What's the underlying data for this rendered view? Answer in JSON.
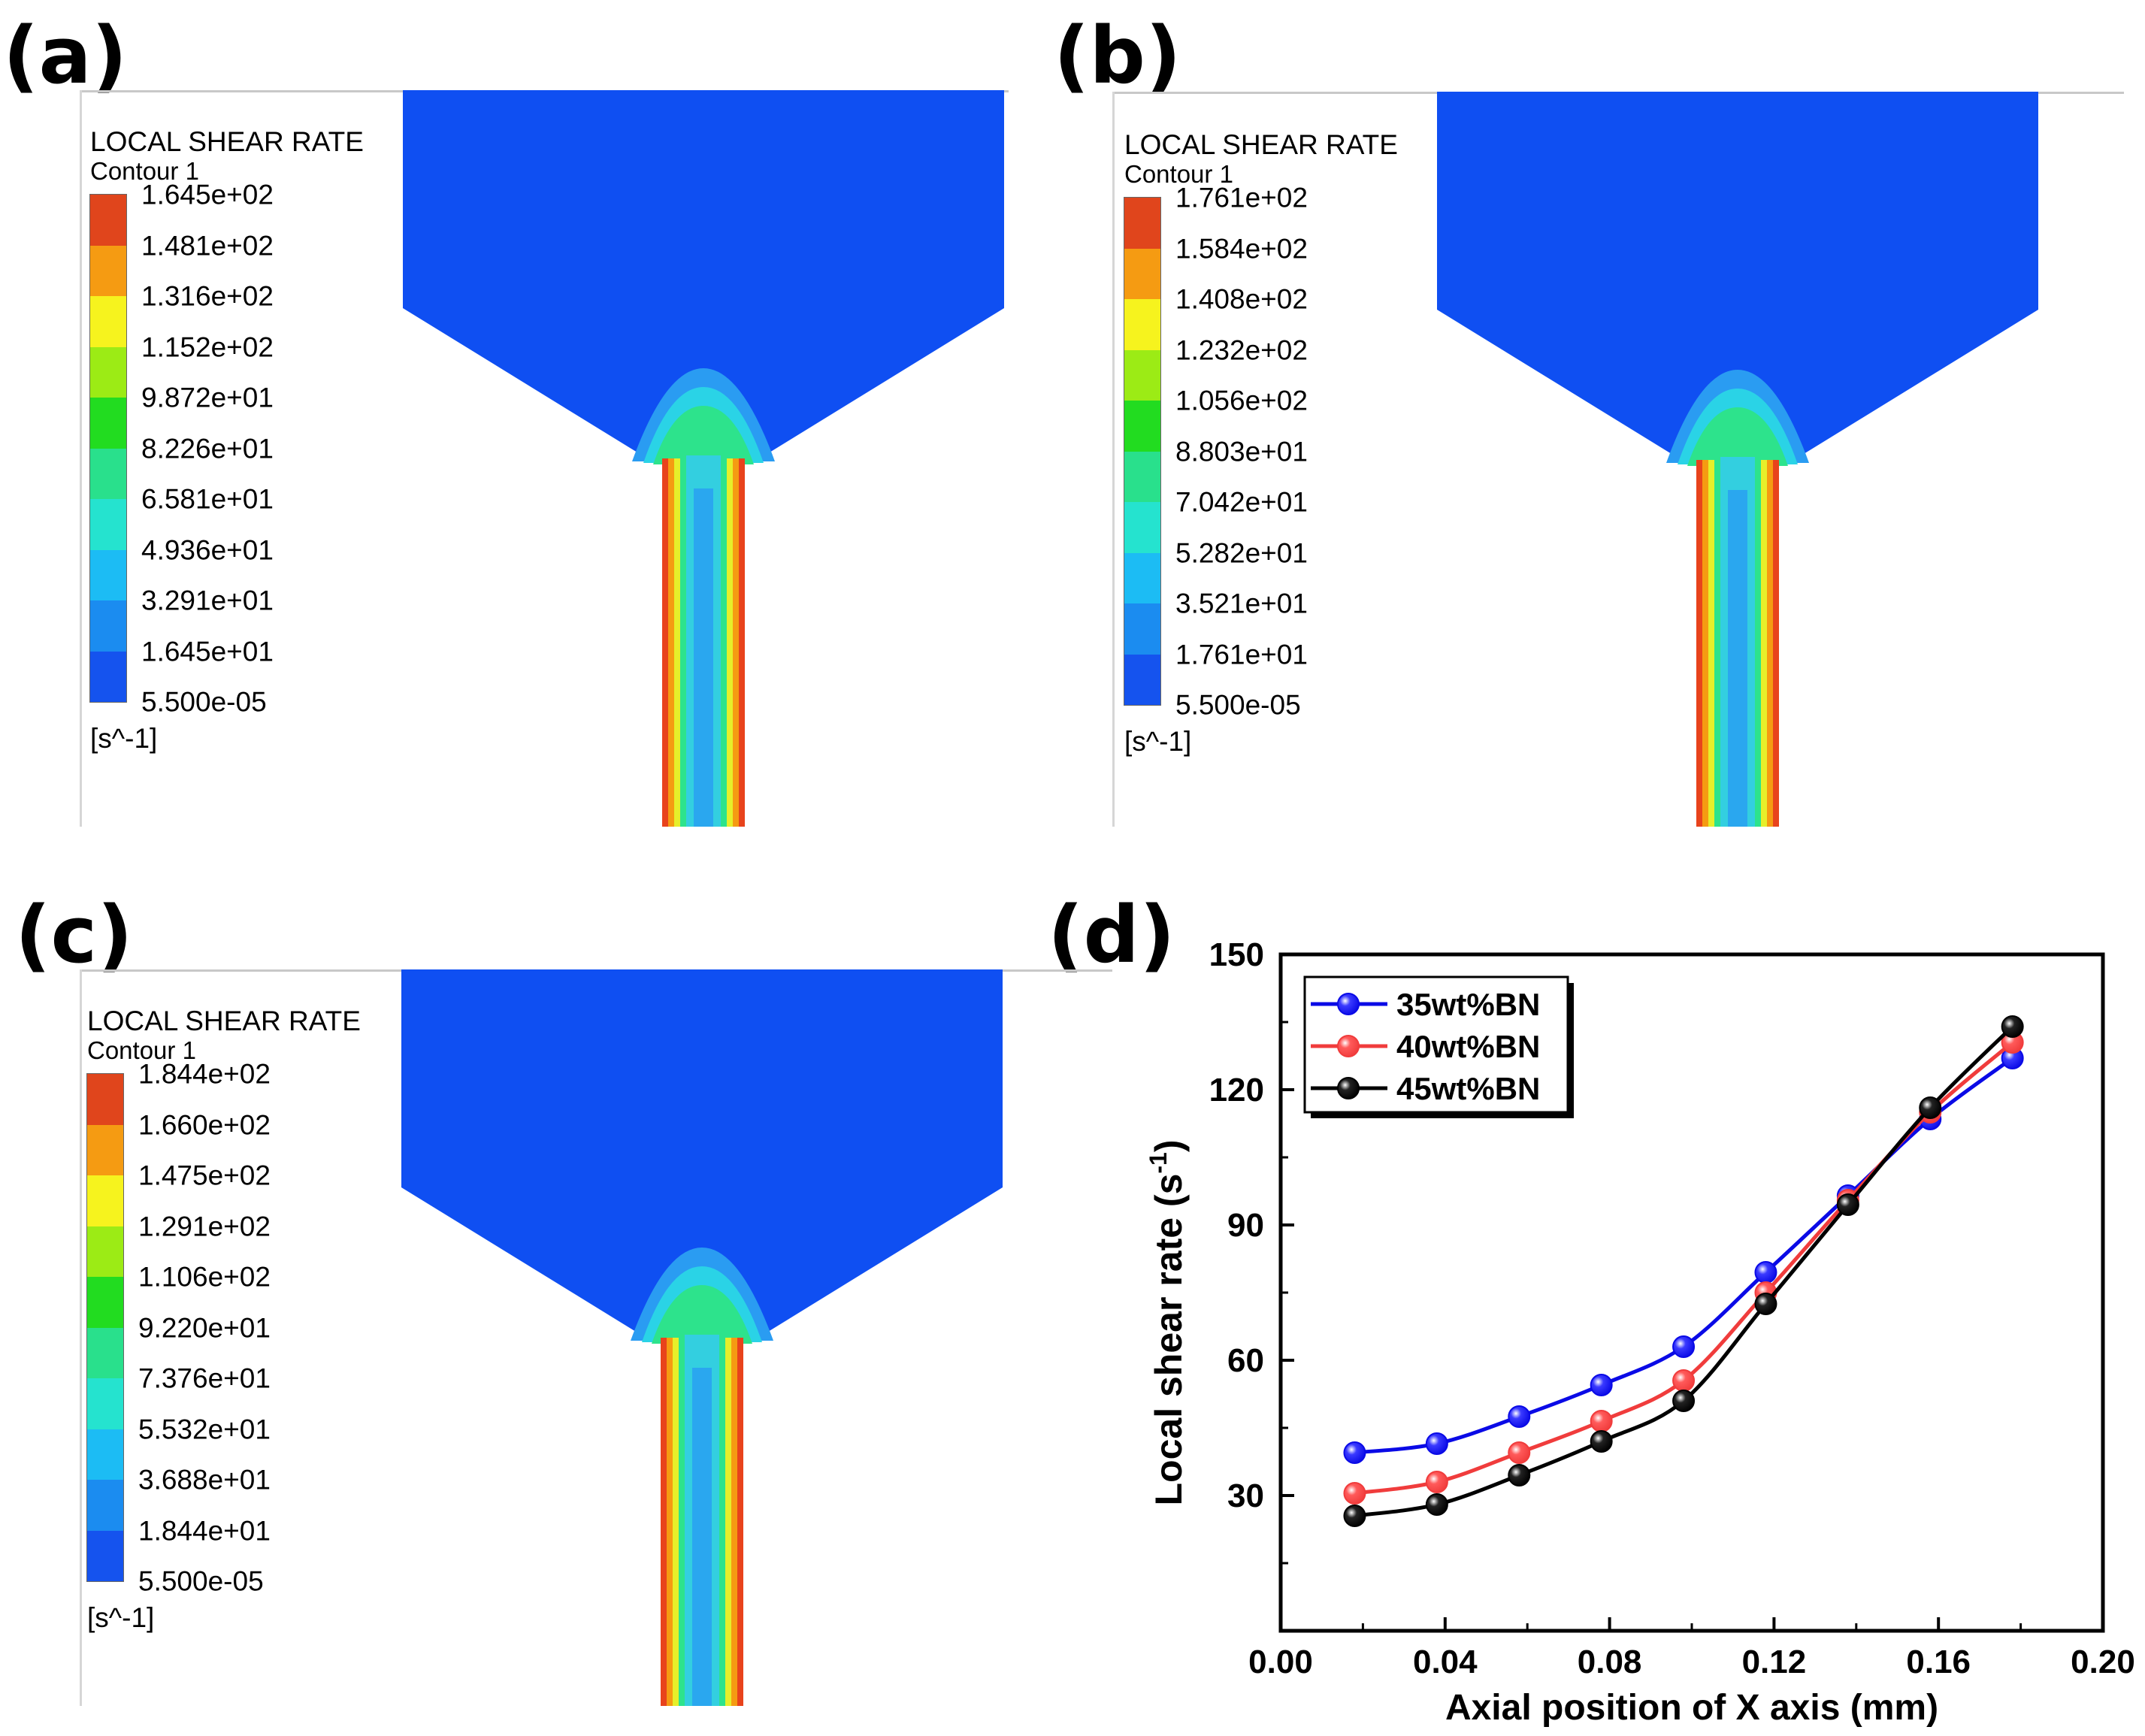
{
  "figure": {
    "panels": [
      {
        "label": "(a)",
        "legend": {
          "title": "LOCAL SHEAR RATE",
          "subtitle": "Contour 1",
          "levels": [
            "1.645e+02",
            "1.481e+02",
            "1.316e+02",
            "1.152e+02",
            "9.872e+01",
            "8.226e+01",
            "6.581e+01",
            "4.936e+01",
            "3.291e+01",
            "1.645e+01",
            "5.500e-05"
          ],
          "unit": "[s^-1]"
        }
      },
      {
        "label": "(b)",
        "legend": {
          "title": "LOCAL SHEAR RATE",
          "subtitle": "Contour 1",
          "levels": [
            "1.761e+02",
            "1.584e+02",
            "1.408e+02",
            "1.232e+02",
            "1.056e+02",
            "8.803e+01",
            "7.042e+01",
            "5.282e+01",
            "3.521e+01",
            "1.761e+01",
            "5.500e-05"
          ],
          "unit": "[s^-1]"
        }
      },
      {
        "label": "(c)",
        "legend": {
          "title": "LOCAL SHEAR RATE",
          "subtitle": "Contour 1",
          "levels": [
            "1.844e+02",
            "1.660e+02",
            "1.475e+02",
            "1.291e+02",
            "1.106e+02",
            "9.220e+01",
            "7.376e+01",
            "5.532e+01",
            "3.688e+01",
            "1.844e+01",
            "5.500e-05"
          ],
          "unit": "[s^-1]"
        }
      }
    ],
    "colormap": [
      "#e0451c",
      "#f59b12",
      "#f6f31e",
      "#9ceb15",
      "#22dc20",
      "#29e08c",
      "#25e3cf",
      "#1cbcf4",
      "#1b8cf0",
      "#1553ee"
    ],
    "flow_colors": {
      "background": "#0f4ff2",
      "ring_light": "#2a9cf2",
      "ring_cyan": "#2ad3e6",
      "ring_green": "#2de38c",
      "wall_red": "#e8431c",
      "wall_orange": "#f59b12",
      "wall_yellow": "#e6ef2a",
      "core_cyan": "#33cfe0",
      "core_blue": "#2aa7ef"
    }
  },
  "chart_data": {
    "panel_label": "(d)",
    "type": "line",
    "title": "",
    "xlabel": "Axial position of X axis (mm)",
    "ylabel_main": "Local shear rate (s",
    "ylabel_sup": "-1",
    "ylabel_close": ")",
    "xlim": [
      0.0,
      0.2
    ],
    "ylim": [
      0,
      150
    ],
    "xticks": [
      0.0,
      0.04,
      0.08,
      0.12,
      0.16,
      0.2
    ],
    "xtick_labels": [
      "0.00",
      "0.04",
      "0.08",
      "0.12",
      "0.16",
      "0.20"
    ],
    "yticks": [
      30,
      60,
      90,
      120,
      150
    ],
    "ytick_labels": [
      "30",
      "60",
      "90",
      "120",
      "150"
    ],
    "x": [
      0.018,
      0.038,
      0.058,
      0.078,
      0.098,
      0.118,
      0.138,
      0.158,
      0.178
    ],
    "series": [
      {
        "name": "35wt%BN",
        "color": "#0a0ae6",
        "marker": "#3a3aff",
        "values": [
          39.5,
          41.5,
          47.5,
          54.5,
          63,
          79.5,
          96.5,
          113.5,
          127
        ]
      },
      {
        "name": "40wt%BN",
        "color": "#f03c3c",
        "marker": "#ff5a5a",
        "values": [
          30.5,
          33,
          39.5,
          46.5,
          55.5,
          75,
          95.5,
          115,
          130.5
        ]
      },
      {
        "name": "45wt%BN",
        "color": "#000000",
        "marker": "#222222",
        "values": [
          25.5,
          28,
          34.5,
          42,
          51,
          72.5,
          94.5,
          116,
          134
        ]
      }
    ],
    "legend_position": "top-left",
    "grid": false
  }
}
